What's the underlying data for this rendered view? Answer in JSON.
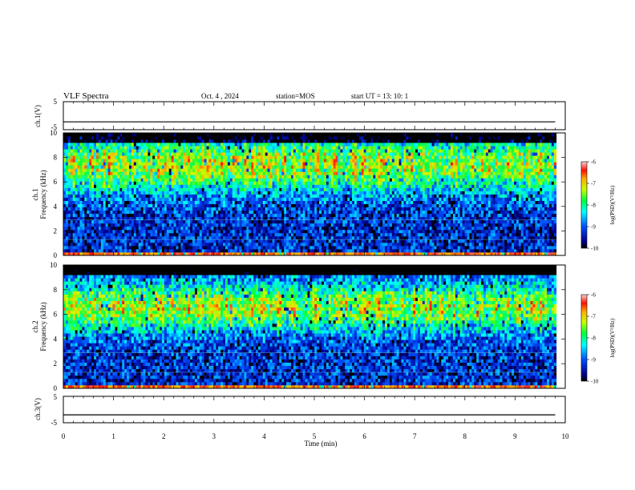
{
  "header": {
    "title": "VLF Spectra",
    "date": "Oct. 4 , 2024",
    "station": "station=MOS",
    "start": "start UT = 13: 10: 1"
  },
  "chart_data": [
    {
      "type": "line",
      "name": "ch1-waveform",
      "ylabel": "ch.1(V)",
      "ylim": [
        -5,
        5
      ],
      "yticks": [
        "5",
        "-5"
      ],
      "x": [
        0,
        9.8
      ],
      "y": [
        -2.2,
        -2.2
      ]
    },
    {
      "type": "heatmap",
      "name": "ch1-spectrogram",
      "ylabel": "ch.1\nFrequency (kHz)",
      "ylim": [
        0,
        10
      ],
      "yticks": [
        "0",
        "2",
        "4",
        "6",
        "8",
        "10"
      ],
      "xlim": [
        0,
        10
      ],
      "colorbar": {
        "label": "log(PSD)(V²/Hz)",
        "range": [
          -10,
          -6
        ],
        "ticks": [
          "-6",
          "-7",
          "-8",
          "-9",
          "-10"
        ]
      }
    },
    {
      "type": "heatmap",
      "name": "ch2-spectrogram",
      "ylabel": "ch.2\nFrequency (kHz)",
      "ylim": [
        0,
        10
      ],
      "yticks": [
        "0",
        "2",
        "4",
        "6",
        "8",
        "10"
      ],
      "xlim": [
        0,
        10
      ],
      "colorbar": {
        "label": "log(PSD)(V²/Hz)",
        "range": [
          -10,
          -6
        ],
        "ticks": [
          "-6",
          "-7",
          "-8",
          "-9",
          "-10"
        ]
      }
    },
    {
      "type": "line",
      "name": "ch3-waveform",
      "ylabel": "ch.3(V)",
      "ylim": [
        -5,
        5
      ],
      "yticks": [
        "5",
        "-5"
      ],
      "x": [
        0,
        9.8
      ],
      "y": [
        -2.0,
        -2.0
      ],
      "xlabel": "Time (min)",
      "xlim": [
        0,
        10
      ],
      "xticks": [
        "0",
        "1",
        "2",
        "3",
        "4",
        "5",
        "6",
        "7",
        "8",
        "9",
        "10"
      ]
    }
  ],
  "labels": {
    "ch1_axis": "ch.1(V)",
    "spec1_a": "ch.1",
    "spec1_b": "Frequency (kHz)",
    "spec2_a": "ch.2",
    "spec2_b": "Frequency (kHz)",
    "ch3_axis": "ch.3(V)",
    "xlabel": "Time (min)",
    "cb1": "log(PSD)(V²/Hz)",
    "cb2": "log(PSD)(V²/Hz)"
  }
}
